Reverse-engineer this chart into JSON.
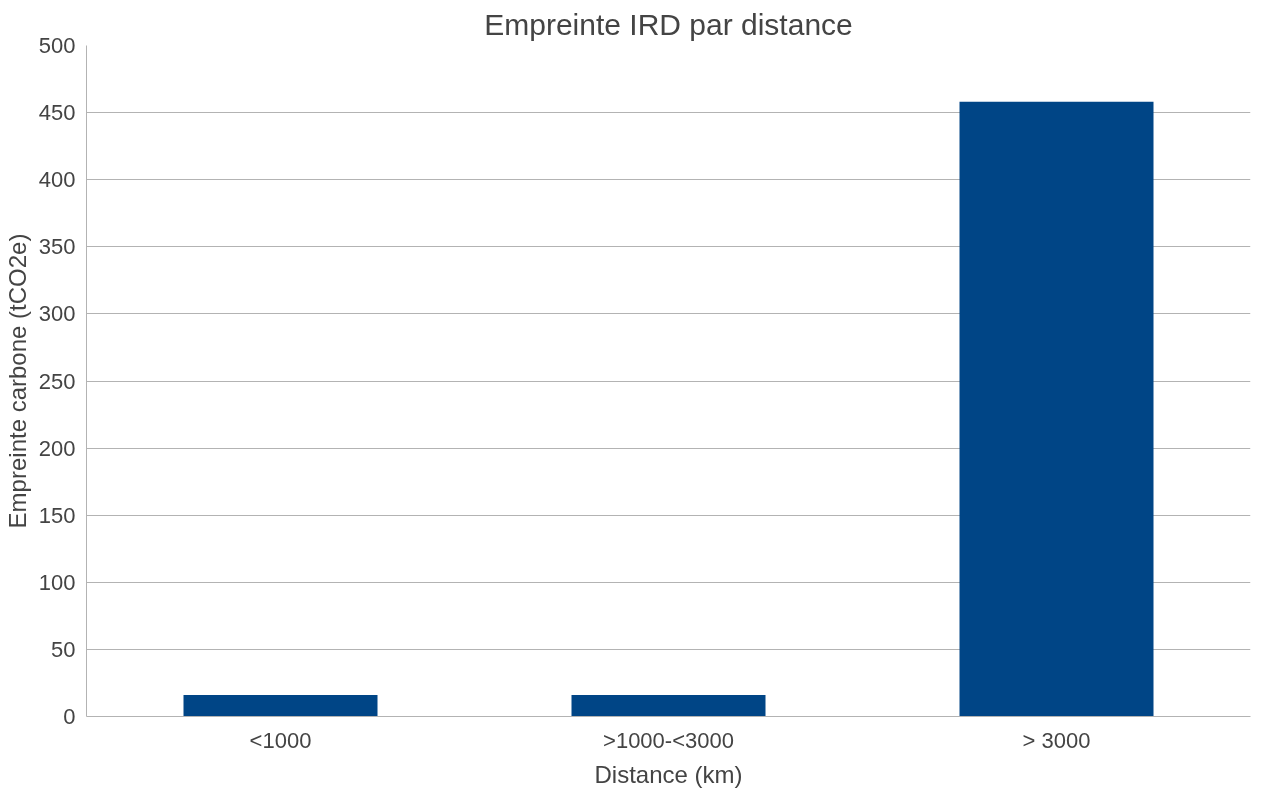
{
  "chart_data": {
    "type": "bar",
    "title": "Empreinte IRD par distance",
    "xlabel": "Distance (km)",
    "ylabel": "Empreinte carbone (tCO2e)",
    "categories": [
      "<1000",
      ">1000-<3000",
      "> 3000"
    ],
    "series": [
      {
        "color": "#004586",
        "values": [
          16,
          16,
          458
        ]
      }
    ],
    "ylim": [
      0,
      500
    ],
    "yticks": [
      0,
      50,
      100,
      150,
      200,
      250,
      300,
      350,
      400,
      450,
      500
    ],
    "grid": "y"
  }
}
